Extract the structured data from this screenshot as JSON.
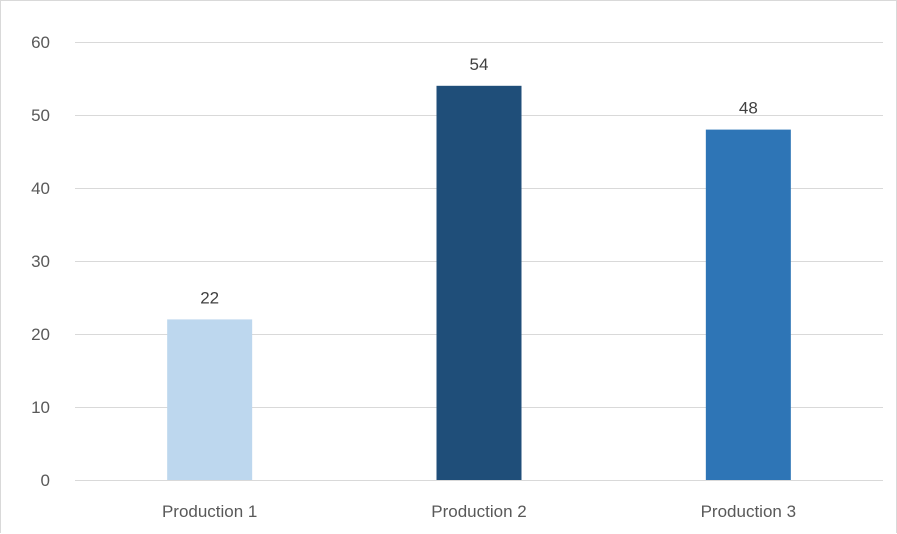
{
  "chart_data": {
    "type": "bar",
    "categories": [
      "Production 1",
      "Production 2",
      "Production 3"
    ],
    "values": [
      22,
      54,
      48
    ],
    "data_labels": [
      "22",
      "54",
      "48"
    ],
    "bar_colors": [
      "#bdd7ee",
      "#1f4e79",
      "#2e75b6"
    ],
    "title": "",
    "xlabel": "",
    "ylabel": "",
    "ylim": [
      0,
      60
    ],
    "yticks": [
      0,
      10,
      20,
      30,
      40,
      50,
      60
    ],
    "grid": true,
    "legend": "none"
  }
}
